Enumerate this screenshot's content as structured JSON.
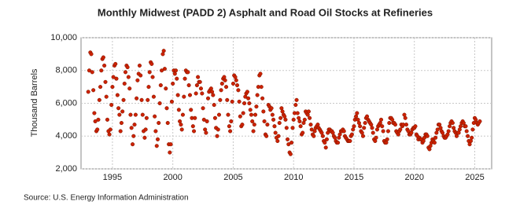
{
  "chart_data": {
    "type": "scatter",
    "title": "Monthly Midwest (PADD 2) Asphalt and Road Oil Stocks at Refineries",
    "y_label": "Thousand Barrels",
    "source": "Source: U.S. Energy Information Administration",
    "grid": true,
    "xlim": [
      1992.4,
      2026.4
    ],
    "xticks": [
      1995,
      2000,
      2005,
      2010,
      2015,
      2020,
      2025
    ],
    "ylim": [
      2000,
      10000
    ],
    "yticks": [
      {
        "value": 2000,
        "label": "2,000"
      },
      {
        "value": 4000,
        "label": "4,000"
      },
      {
        "value": 6000,
        "label": "6,000"
      },
      {
        "value": 8000,
        "label": "8,000"
      },
      {
        "value": 10000,
        "label": "10,000"
      }
    ],
    "series": [
      {
        "color": "#cc2200",
        "x": [
          1993.0,
          1993.08,
          1993.17,
          1993.25,
          1993.33,
          1993.42,
          1993.5,
          1993.58,
          1993.67,
          1993.75,
          1993.83,
          1993.92,
          1994.0,
          1994.08,
          1994.17,
          1994.25,
          1994.33,
          1994.42,
          1994.5,
          1994.58,
          1994.67,
          1994.75,
          1994.83,
          1994.92,
          1995.0,
          1995.08,
          1995.17,
          1995.25,
          1995.33,
          1995.42,
          1995.5,
          1995.58,
          1995.67,
          1995.75,
          1995.83,
          1995.92,
          1996.0,
          1996.08,
          1996.17,
          1996.25,
          1996.33,
          1996.42,
          1996.5,
          1996.58,
          1996.67,
          1996.75,
          1996.83,
          1996.92,
          1997.0,
          1997.08,
          1997.17,
          1997.25,
          1997.33,
          1997.42,
          1997.5,
          1997.58,
          1997.67,
          1997.75,
          1997.83,
          1997.92,
          1998.0,
          1998.08,
          1998.17,
          1998.25,
          1998.33,
          1998.42,
          1998.5,
          1998.58,
          1998.67,
          1998.75,
          1998.83,
          1998.92,
          1999.0,
          1999.08,
          1999.17,
          1999.25,
          1999.33,
          1999.42,
          1999.5,
          1999.58,
          1999.67,
          1999.75,
          1999.83,
          1999.92,
          2000.0,
          2000.08,
          2000.17,
          2000.25,
          2000.33,
          2000.42,
          2000.5,
          2000.58,
          2000.67,
          2000.75,
          2000.83,
          2000.92,
          2001.0,
          2001.08,
          2001.17,
          2001.25,
          2001.33,
          2001.42,
          2001.5,
          2001.58,
          2001.67,
          2001.75,
          2001.83,
          2001.92,
          2002.0,
          2002.08,
          2002.17,
          2002.25,
          2002.33,
          2002.42,
          2002.5,
          2002.58,
          2002.67,
          2002.75,
          2002.83,
          2002.92,
          2003.0,
          2003.08,
          2003.17,
          2003.25,
          2003.33,
          2003.42,
          2003.5,
          2003.58,
          2003.67,
          2003.75,
          2003.83,
          2003.92,
          2004.0,
          2004.08,
          2004.17,
          2004.25,
          2004.33,
          2004.42,
          2004.5,
          2004.58,
          2004.67,
          2004.75,
          2004.83,
          2004.92,
          2005.0,
          2005.08,
          2005.17,
          2005.25,
          2005.33,
          2005.42,
          2005.5,
          2005.58,
          2005.67,
          2005.75,
          2005.83,
          2005.92,
          2006.0,
          2006.08,
          2006.17,
          2006.25,
          2006.33,
          2006.42,
          2006.5,
          2006.58,
          2006.67,
          2006.75,
          2006.83,
          2006.92,
          2007.0,
          2007.08,
          2007.17,
          2007.25,
          2007.33,
          2007.42,
          2007.5,
          2007.58,
          2007.67,
          2007.75,
          2007.83,
          2007.92,
          2008.0,
          2008.08,
          2008.17,
          2008.25,
          2008.33,
          2008.42,
          2008.5,
          2008.58,
          2008.67,
          2008.75,
          2008.83,
          2008.92,
          2009.0,
          2009.08,
          2009.17,
          2009.25,
          2009.33,
          2009.42,
          2009.5,
          2009.58,
          2009.67,
          2009.75,
          2009.83,
          2009.92,
          2010.0,
          2010.08,
          2010.17,
          2010.25,
          2010.33,
          2010.42,
          2010.5,
          2010.58,
          2010.67,
          2010.75,
          2010.83,
          2010.92,
          2011.0,
          2011.08,
          2011.17,
          2011.25,
          2011.33,
          2011.42,
          2011.5,
          2011.58,
          2011.67,
          2011.75,
          2011.83,
          2011.92,
          2012.0,
          2012.08,
          2012.17,
          2012.25,
          2012.33,
          2012.42,
          2012.5,
          2012.58,
          2012.67,
          2012.75,
          2012.83,
          2012.92,
          2013.0,
          2013.08,
          2013.17,
          2013.25,
          2013.33,
          2013.42,
          2013.5,
          2013.58,
          2013.67,
          2013.75,
          2013.83,
          2013.92,
          2014.0,
          2014.08,
          2014.17,
          2014.25,
          2014.33,
          2014.42,
          2014.5,
          2014.58,
          2014.67,
          2014.75,
          2014.83,
          2014.92,
          2015.0,
          2015.08,
          2015.17,
          2015.25,
          2015.33,
          2015.42,
          2015.5,
          2015.58,
          2015.67,
          2015.75,
          2015.83,
          2015.92,
          2016.0,
          2016.08,
          2016.17,
          2016.25,
          2016.33,
          2016.42,
          2016.5,
          2016.58,
          2016.67,
          2016.75,
          2016.83,
          2016.92,
          2017.0,
          2017.08,
          2017.17,
          2017.25,
          2017.33,
          2017.42,
          2017.5,
          2017.58,
          2017.67,
          2017.75,
          2017.83,
          2017.92,
          2018.0,
          2018.08,
          2018.17,
          2018.25,
          2018.33,
          2018.42,
          2018.5,
          2018.58,
          2018.67,
          2018.75,
          2018.83,
          2018.92,
          2019.0,
          2019.08,
          2019.17,
          2019.25,
          2019.33,
          2019.42,
          2019.5,
          2019.58,
          2019.67,
          2019.75,
          2019.83,
          2019.92,
          2020.0,
          2020.08,
          2020.17,
          2020.25,
          2020.33,
          2020.42,
          2020.5,
          2020.58,
          2020.67,
          2020.75,
          2020.83,
          2020.92,
          2021.0,
          2021.08,
          2021.17,
          2021.25,
          2021.33,
          2021.42,
          2021.5,
          2021.58,
          2021.67,
          2021.75,
          2021.83,
          2021.92,
          2022.0,
          2022.08,
          2022.17,
          2022.25,
          2022.33,
          2022.42,
          2022.5,
          2022.58,
          2022.67,
          2022.75,
          2022.83,
          2022.92,
          2023.0,
          2023.08,
          2023.17,
          2023.25,
          2023.33,
          2023.42,
          2023.5,
          2023.58,
          2023.67,
          2023.75,
          2023.83,
          2023.92,
          2024.0,
          2024.08,
          2024.17,
          2024.25,
          2024.33,
          2024.42,
          2024.5,
          2024.58,
          2024.67,
          2024.75,
          2024.83,
          2024.92,
          2025.0,
          2025.08,
          2025.17,
          2025.25,
          2025.33,
          2025.42
        ],
        "values": [
          6700,
          8000,
          9100,
          9000,
          7900,
          6800,
          5400,
          4900,
          4300,
          4400,
          5000,
          6200,
          7000,
          8000,
          8700,
          8800,
          8300,
          7300,
          6400,
          5000,
          4300,
          4100,
          4400,
          5900,
          7000,
          7600,
          8300,
          8400,
          7500,
          6500,
          5700,
          5300,
          4300,
          4800,
          5500,
          6200,
          7200,
          7900,
          8300,
          8200,
          7600,
          6900,
          5300,
          4500,
          3500,
          4000,
          4700,
          5300,
          6300,
          7400,
          7800,
          8300,
          7700,
          6200,
          5300,
          4300,
          3900,
          4400,
          5100,
          6200,
          7000,
          7900,
          8500,
          8400,
          7600,
          6400,
          5200,
          4300,
          3400,
          3800,
          4800,
          6000,
          7100,
          8000,
          9000,
          9200,
          8100,
          6900,
          5700,
          4800,
          3500,
          3000,
          3500,
          6100,
          7200,
          8000,
          7800,
          8000,
          7500,
          6500,
          5600,
          4900,
          4700,
          4400,
          5300,
          6400,
          7500,
          8000,
          7900,
          7900,
          7100,
          6500,
          5600,
          5100,
          4600,
          4300,
          5100,
          6600,
          7100,
          7600,
          7300,
          7300,
          6900,
          6600,
          5700,
          5000,
          4400,
          4200,
          4900,
          6300,
          6700,
          6800,
          6900,
          6700,
          6500,
          5900,
          5100,
          4500,
          4000,
          4400,
          5300,
          6200,
          6800,
          7200,
          7500,
          7600,
          7400,
          7000,
          6200,
          5300,
          4600,
          4300,
          4900,
          6100,
          7200,
          7700,
          7600,
          7400,
          7100,
          6800,
          6100,
          5200,
          4600,
          4700,
          5400,
          6000,
          6400,
          6600,
          6700,
          6300,
          6000,
          5600,
          5300,
          4900,
          4300,
          4700,
          5300,
          5800,
          6500,
          7000,
          7700,
          7800,
          7000,
          6300,
          5500,
          4900,
          4100,
          4000,
          4700,
          5900,
          5800,
          5600,
          5700,
          5300,
          5000,
          4600,
          4200,
          3900,
          3700,
          4000,
          4800,
          5100,
          5700,
          5500,
          5300,
          5200,
          5000,
          4500,
          3800,
          3500,
          3000,
          2900,
          3600,
          4500,
          5000,
          5400,
          5900,
          6200,
          5400,
          5100,
          4900,
          4600,
          4100,
          4200,
          4800,
          5000,
          5500,
          5400,
          5300,
          5500,
          5100,
          4700,
          4400,
          4100,
          4000,
          4300,
          4500,
          4600,
          4700,
          4500,
          4400,
          4300,
          4200,
          4000,
          3700,
          3600,
          3300,
          3800,
          4200,
          4400,
          4400,
          4300,
          4300,
          4200,
          4000,
          3900,
          3700,
          3600,
          3600,
          3900,
          4100,
          4300,
          4300,
          4400,
          4300,
          4000,
          3900,
          3800,
          3700,
          3700,
          3700,
          4000,
          4100,
          4400,
          4600,
          5000,
          5200,
          5400,
          5000,
          4800,
          4600,
          4300,
          4200,
          4000,
          4500,
          4800,
          5100,
          5200,
          5000,
          4900,
          4800,
          4700,
          4500,
          4200,
          3800,
          3700,
          3900,
          4400,
          4600,
          4700,
          4800,
          5000,
          4600,
          4300,
          3700,
          3600,
          3600,
          3800,
          4300,
          4800,
          5100,
          5100,
          5000,
          4800,
          4800,
          4700,
          4300,
          4200,
          4100,
          4300,
          4400,
          4700,
          4600,
          4700,
          5300,
          5100,
          4700,
          4400,
          4300,
          4100,
          4100,
          4200,
          4400,
          4500,
          4500,
          4600,
          4100,
          4000,
          3800,
          3900,
          3800,
          3800,
          3600,
          3700,
          3900,
          4100,
          4100,
          4000,
          3300,
          3200,
          3400,
          3600,
          3800,
          3700,
          3600,
          3900,
          4200,
          4400,
          4700,
          4700,
          4500,
          4300,
          4200,
          4000,
          3900,
          3900,
          4000,
          4100,
          4300,
          4600,
          4800,
          4900,
          4800,
          4500,
          4300,
          4200,
          4000,
          4200,
          4200,
          4400,
          4600,
          4800,
          4900,
          4800,
          4600,
          4600,
          4300,
          4000,
          3700,
          3500,
          3700,
          3900,
          4400,
          4800,
          5100,
          5000,
          4800,
          4700,
          4800,
          4900
        ]
      }
    ]
  }
}
